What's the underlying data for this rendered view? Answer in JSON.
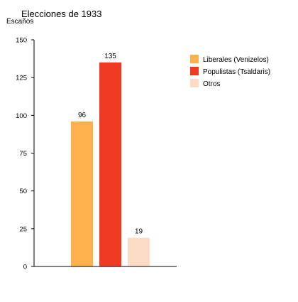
{
  "chart_data": {
    "type": "bar",
    "title": "Elecciones de 1933",
    "ylabel": "Escaños",
    "xlabel": "",
    "ylim": [
      0,
      150
    ],
    "yticks": [
      0,
      25,
      50,
      75,
      100,
      125,
      150
    ],
    "categories": [
      "Liberales (Venizelos)",
      "Populistas (Tsaldaris)",
      "Otros"
    ],
    "values": [
      96,
      135,
      19
    ],
    "colors": [
      "#FFB14E",
      "#EF3B24",
      "#FDDCC6"
    ],
    "data_labels": [
      "96",
      "135",
      "19"
    ],
    "legend_position": "right",
    "grid": false
  }
}
